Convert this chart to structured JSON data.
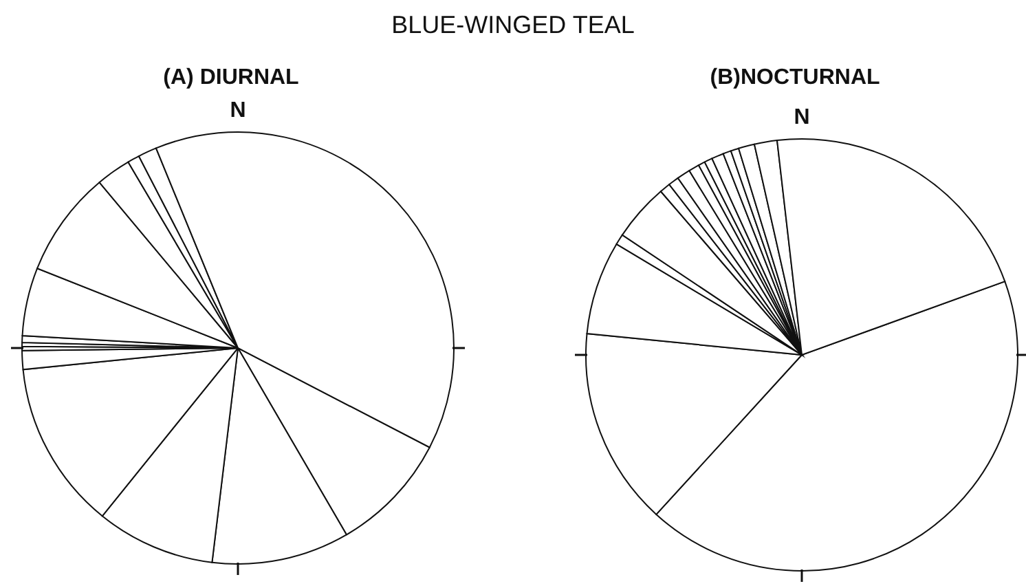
{
  "chart_data": [
    {
      "type": "pie",
      "title": "BLUE-WINGED TEAL",
      "subtitle": "(A) DIURNAL",
      "annotations": [
        "N"
      ],
      "categories": [
        null,
        null,
        null,
        null,
        null,
        null,
        null,
        null,
        null,
        null,
        null,
        null,
        null,
        null
      ],
      "values": [
        9.0,
        10.3,
        8.9,
        12.6,
        1.4,
        0.3,
        0.3,
        0.5,
        5.1,
        7.9,
        2.6,
        0.9,
        1.4,
        38.8
      ],
      "colors": [
        "#ffffff",
        "#ffffff",
        "#ffffff",
        "#ffffff",
        "#ffffff",
        "#ffffff",
        "#ffffff",
        "#ffffff",
        "#ffffff",
        "#ffffff",
        "#ffffff",
        "#ffffff",
        "#ffffff",
        "#ffffff"
      ]
    },
    {
      "type": "pie",
      "subtitle": "(B)NOCTURNAL",
      "annotations": [
        "N"
      ],
      "categories": [
        null,
        null,
        null,
        null,
        null,
        null,
        null,
        null,
        null,
        null,
        null,
        null,
        null,
        null,
        null,
        null,
        null
      ],
      "values": [
        42.3,
        14.8,
        7.0,
        0.8,
        4.3,
        0.8,
        0.8,
        1.0,
        0.8,
        0.5,
        0.6,
        0.9,
        0.6,
        0.6,
        1.2,
        1.7,
        21.3
      ],
      "colors": [
        "#ffffff",
        "#ffffff",
        "#ffffff",
        "#ffffff",
        "#ffffff",
        "#ffffff",
        "#ffffff",
        "#ffffff",
        "#ffffff",
        "#ffffff",
        "#ffffff",
        "#ffffff",
        "#ffffff",
        "#ffffff",
        "#ffffff",
        "#ffffff",
        "#ffffff"
      ]
    }
  ]
}
